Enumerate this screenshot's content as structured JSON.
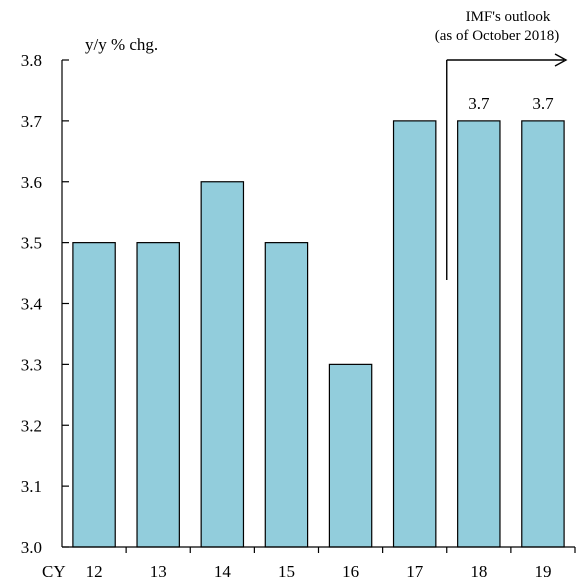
{
  "chart_data": {
    "type": "bar",
    "title": "",
    "ylabel": "y/y % chg.",
    "xlabel": "",
    "x_prefix": "CY",
    "categories": [
      "12",
      "13",
      "14",
      "15",
      "16",
      "17",
      "18",
      "19"
    ],
    "values": [
      3.5,
      3.5,
      3.6,
      3.5,
      3.3,
      3.7,
      3.7,
      3.7
    ],
    "data_labels": [
      "",
      "",
      "",
      "",
      "",
      "",
      "3.7",
      "3.7"
    ],
    "ylim": [
      3.0,
      3.8
    ],
    "yticks": [
      "3.0",
      "3.1",
      "3.2",
      "3.3",
      "3.4",
      "3.5",
      "3.6",
      "3.7",
      "3.8"
    ],
    "grid": false,
    "bar_color": "#92CDDC",
    "bar_edge_color": "#000000",
    "annotation": {
      "line1": "IMF's outlook",
      "line2": "(as of October 2018)",
      "starts_after_category": "17"
    }
  }
}
